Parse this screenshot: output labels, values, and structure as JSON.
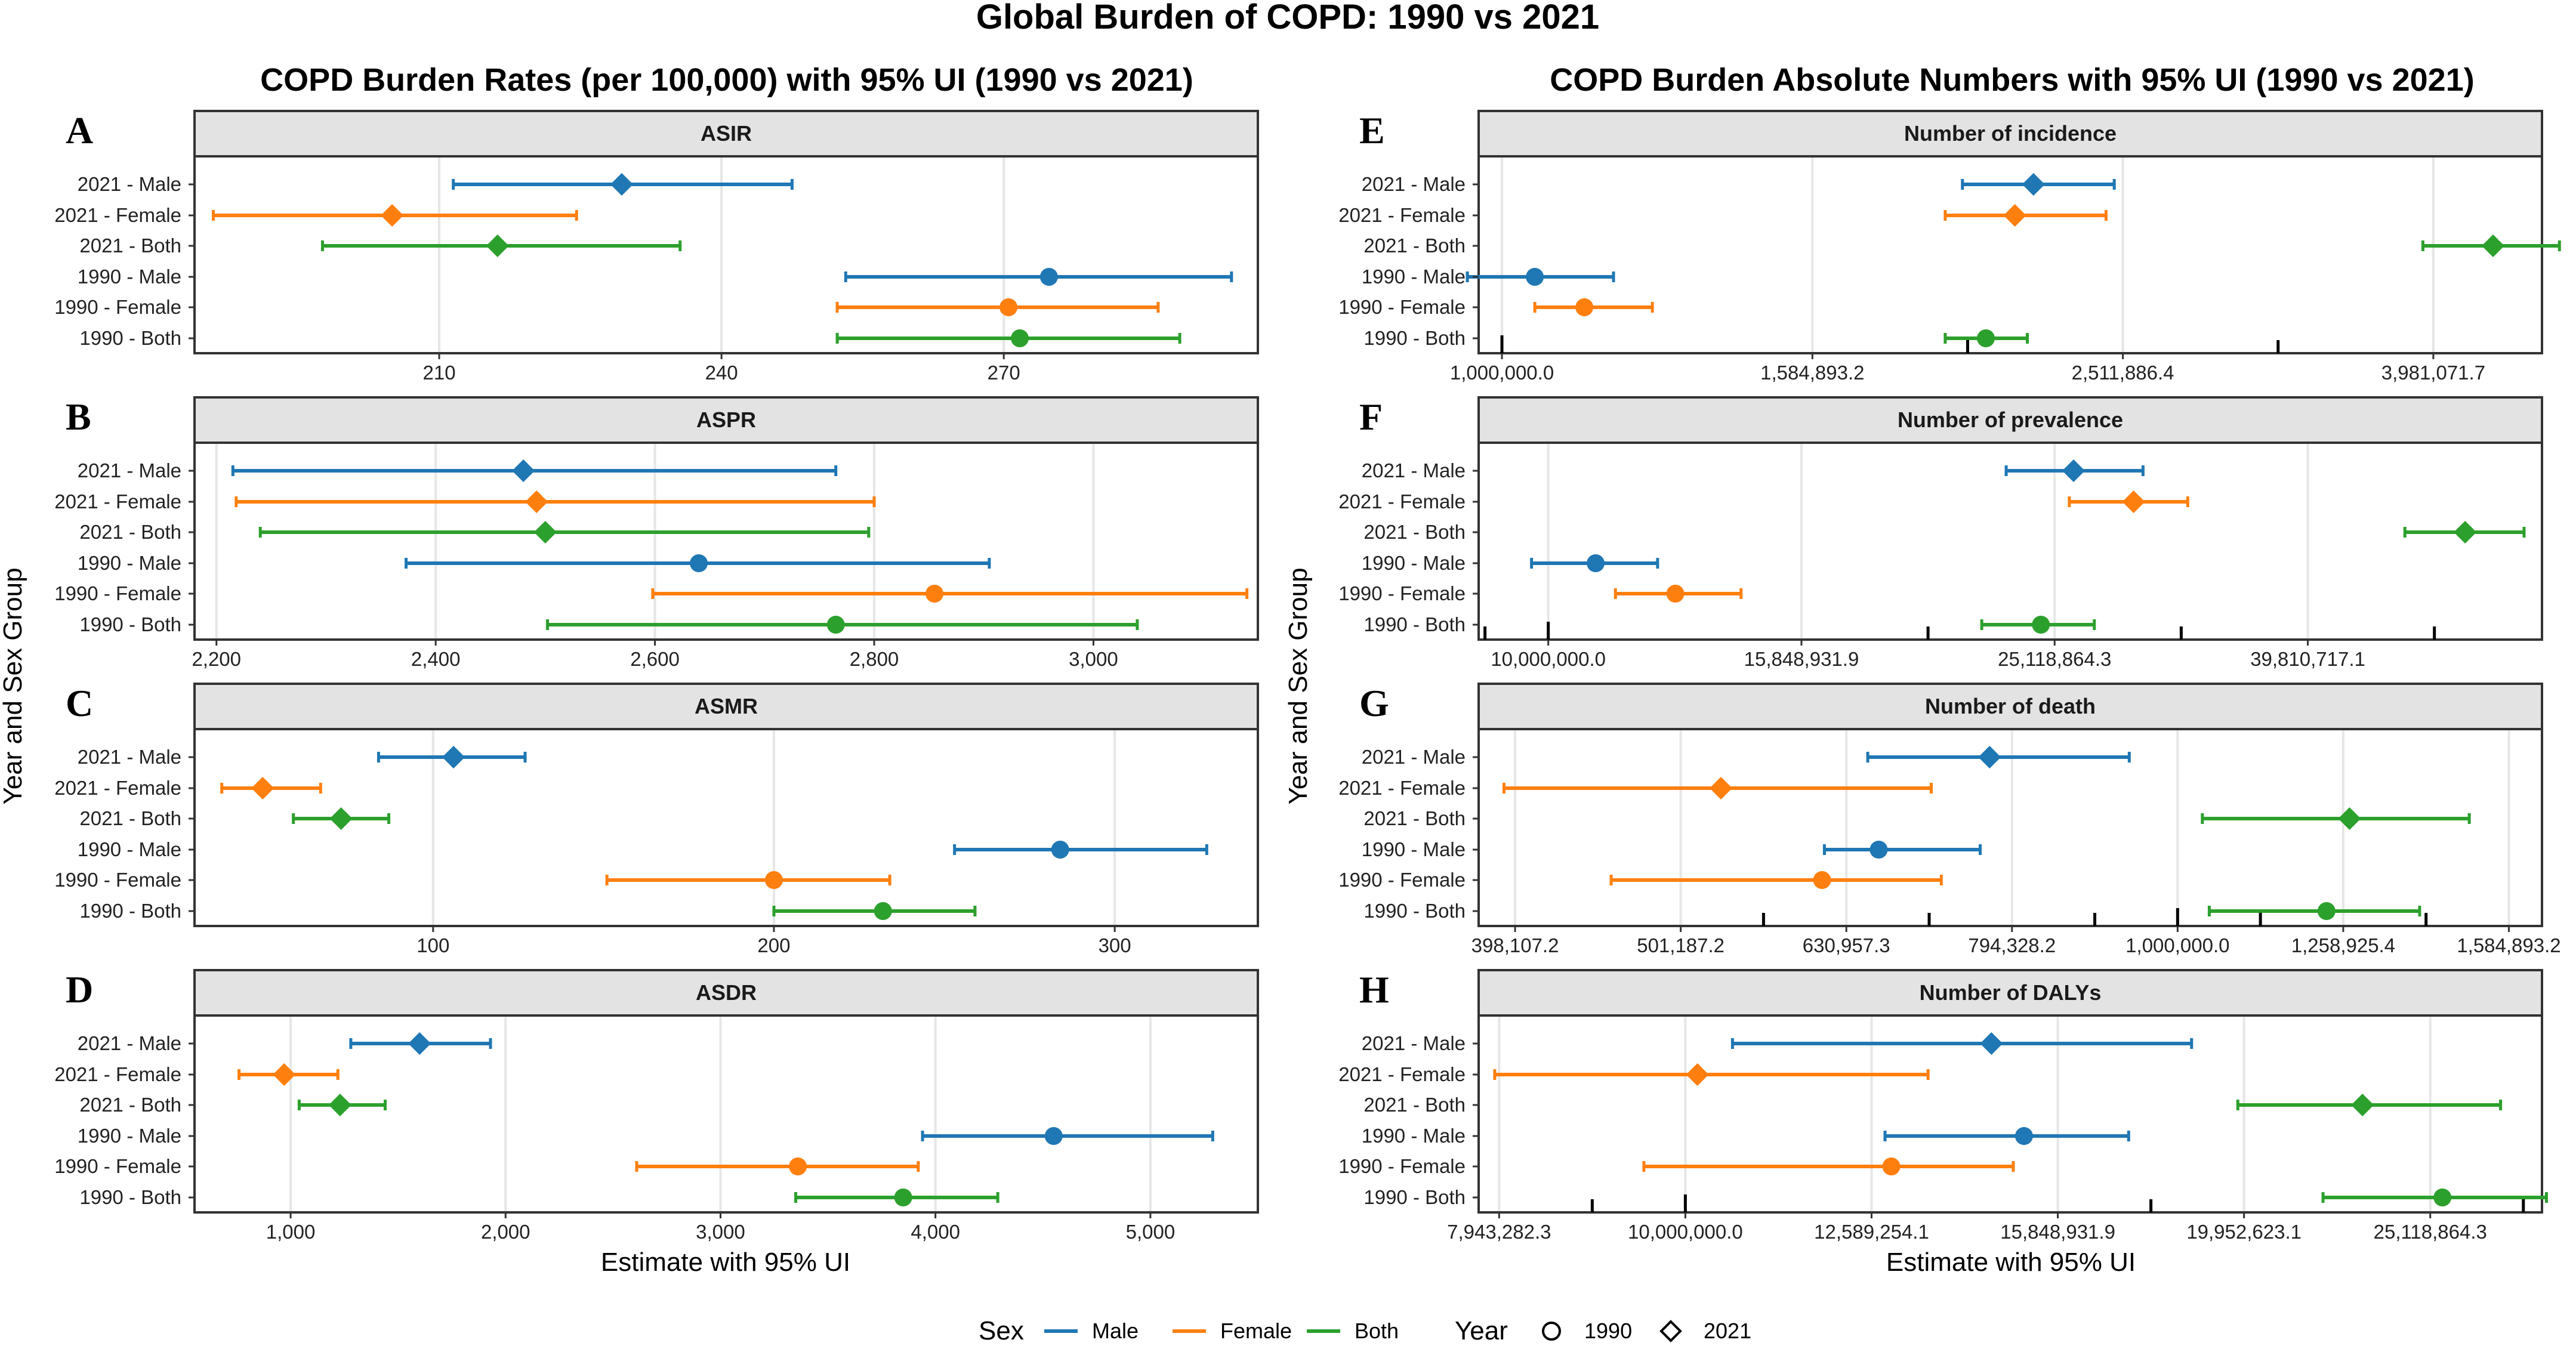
{
  "title": "Global Burden of COPD: 1990 vs 2021",
  "columns": [
    {
      "letter_set": "left",
      "title": "COPD Burden Rates (per 100,000) with 95% UI (1990 vs 2021)"
    },
    {
      "letter_set": "right",
      "title": "COPD Burden Absolute Numbers with 95% UI (1990 vs 2021)"
    }
  ],
  "y_axis_title": "Year and Sex Group",
  "x_axis_title": "Estimate with 95% UI",
  "row_labels": [
    "2021 - Male",
    "2021 - Female",
    "2021 - Both",
    "1990 - Male",
    "1990 - Female",
    "1990 - Both"
  ],
  "colors": {
    "Male": "#1f77b4",
    "Female": "#ff7f0e",
    "Both": "#2ca02c"
  },
  "legend": {
    "sex_title": "Sex",
    "sex_items": [
      {
        "label": "Male",
        "key": "Male"
      },
      {
        "label": "Female",
        "key": "Female"
      },
      {
        "label": "Both",
        "key": "Both"
      }
    ],
    "year_title": "Year",
    "year_items": [
      {
        "label": "1990",
        "shape": "circle"
      },
      {
        "label": "2021",
        "shape": "diamond"
      }
    ]
  },
  "chart_data": [
    {
      "letter": "A",
      "type": "forest",
      "strip": "ASIR",
      "scale": "linear",
      "xlim": [
        184,
        297
      ],
      "ticks": [
        210,
        240,
        270
      ],
      "tick_labels": [
        "210",
        "240",
        "270"
      ],
      "rows": [
        {
          "label": "2021 - Male",
          "sex": "Male",
          "year": "2021",
          "est": 229.4,
          "lo": 211.5,
          "hi": 247.5
        },
        {
          "label": "2021 - Female",
          "sex": "Female",
          "year": "2021",
          "est": 205.0,
          "lo": 186.0,
          "hi": 224.6
        },
        {
          "label": "2021 - Both",
          "sex": "Both",
          "year": "2021",
          "est": 216.2,
          "lo": 197.6,
          "hi": 235.6
        },
        {
          "label": "1990 - Male",
          "sex": "Male",
          "year": "1990",
          "est": 274.8,
          "lo": 253.2,
          "hi": 294.2
        },
        {
          "label": "1990 - Female",
          "sex": "Female",
          "year": "1990",
          "est": 270.5,
          "lo": 252.3,
          "hi": 286.4
        },
        {
          "label": "1990 - Both",
          "sex": "Both",
          "year": "1990",
          "est": 271.7,
          "lo": 252.3,
          "hi": 288.7
        }
      ]
    },
    {
      "letter": "B",
      "type": "forest",
      "strip": "ASPR",
      "scale": "linear",
      "xlim": [
        2180,
        3150
      ],
      "ticks": [
        2200,
        2400,
        2600,
        2800,
        3000
      ],
      "tick_labels": [
        "2,200",
        "2,400",
        "2,600",
        "2,800",
        "3,000"
      ],
      "rows": [
        {
          "label": "2021 - Male",
          "sex": "Male",
          "year": "2021",
          "est": 2480,
          "lo": 2215,
          "hi": 2765
        },
        {
          "label": "2021 - Female",
          "sex": "Female",
          "year": "2021",
          "est": 2492,
          "lo": 2218,
          "hi": 2800
        },
        {
          "label": "2021 - Both",
          "sex": "Both",
          "year": "2021",
          "est": 2500,
          "lo": 2240,
          "hi": 2795
        },
        {
          "label": "1990 - Male",
          "sex": "Male",
          "year": "1990",
          "est": 2640,
          "lo": 2373,
          "hi": 2905
        },
        {
          "label": "1990 - Female",
          "sex": "Female",
          "year": "1990",
          "est": 2855,
          "lo": 2598,
          "hi": 3140
        },
        {
          "label": "1990 - Both",
          "sex": "Both",
          "year": "1990",
          "est": 2765,
          "lo": 2502,
          "hi": 3040
        }
      ]
    },
    {
      "letter": "C",
      "type": "forest",
      "strip": "ASMR",
      "scale": "linear",
      "xlim": [
        30,
        342
      ],
      "ticks": [
        100,
        200,
        300
      ],
      "tick_labels": [
        "100",
        "200",
        "300"
      ],
      "rows": [
        {
          "label": "2021 - Male",
          "sex": "Male",
          "year": "2021",
          "est": 106,
          "lo": 84,
          "hi": 127
        },
        {
          "label": "2021 - Female",
          "sex": "Female",
          "year": "2021",
          "est": 50,
          "lo": 38,
          "hi": 67
        },
        {
          "label": "2021 - Both",
          "sex": "Both",
          "year": "2021",
          "est": 73,
          "lo": 59,
          "hi": 87
        },
        {
          "label": "1990 - Male",
          "sex": "Male",
          "year": "1990",
          "est": 284,
          "lo": 253,
          "hi": 327
        },
        {
          "label": "1990 - Female",
          "sex": "Female",
          "year": "1990",
          "est": 200,
          "lo": 151,
          "hi": 234
        },
        {
          "label": "1990 - Both",
          "sex": "Both",
          "year": "1990",
          "est": 232,
          "lo": 200,
          "hi": 259
        }
      ]
    },
    {
      "letter": "D",
      "type": "forest",
      "strip": "ASDR",
      "scale": "linear",
      "xlim": [
        553,
        5500
      ],
      "ticks": [
        1000,
        2000,
        3000,
        4000,
        5000
      ],
      "tick_labels": [
        "1,000",
        "2,000",
        "3,000",
        "4,000",
        "5,000"
      ],
      "rows": [
        {
          "label": "2021 - Male",
          "sex": "Male",
          "year": "2021",
          "est": 1600,
          "lo": 1280,
          "hi": 1930
        },
        {
          "label": "2021 - Female",
          "sex": "Female",
          "year": "2021",
          "est": 970,
          "lo": 760,
          "hi": 1220
        },
        {
          "label": "2021 - Both",
          "sex": "Both",
          "year": "2021",
          "est": 1230,
          "lo": 1040,
          "hi": 1440
        },
        {
          "label": "1990 - Male",
          "sex": "Male",
          "year": "1990",
          "est": 4550,
          "lo": 3940,
          "hi": 5290
        },
        {
          "label": "1990 - Female",
          "sex": "Female",
          "year": "1990",
          "est": 3360,
          "lo": 2610,
          "hi": 3920
        },
        {
          "label": "1990 - Both",
          "sex": "Both",
          "year": "1990",
          "est": 3850,
          "lo": 3350,
          "hi": 4290
        }
      ]
    },
    {
      "letter": "E",
      "type": "forest",
      "strip": "Number of incidence",
      "scale": "log10",
      "xlim": [
        5.985,
        6.67
      ],
      "ticks": [
        6.0,
        6.2,
        6.4,
        6.6
      ],
      "tick_labels": [
        "1,000,000.0",
        "1,584,893.2",
        "2,511,886.4",
        "3,981,071.7"
      ],
      "minor_ticks": [
        5.95,
        6.3,
        6.5,
        6.7
      ],
      "major_mark": 6.0,
      "rows": [
        {
          "label": "2021 - Male",
          "sex": "Male",
          "year": "2021",
          "est": 2200000,
          "lo": 1980000,
          "hi": 2480000
        },
        {
          "label": "2021 - Female",
          "sex": "Female",
          "year": "2021",
          "est": 2140000,
          "lo": 1930000,
          "hi": 2450000
        },
        {
          "label": "2021 - Both",
          "sex": "Both",
          "year": "2021",
          "est": 4350000,
          "lo": 3920000,
          "hi": 4800000
        },
        {
          "label": "1990 - Male",
          "sex": "Male",
          "year": "1990",
          "est": 1050000,
          "lo": 950000,
          "hi": 1180000
        },
        {
          "label": "1990 - Female",
          "sex": "Female",
          "year": "1990",
          "est": 1130000,
          "lo": 1050000,
          "hi": 1250000
        },
        {
          "label": "1990 - Both",
          "sex": "Both",
          "year": "1990",
          "est": 2050000,
          "lo": 1930000,
          "hi": 2180000
        }
      ]
    },
    {
      "letter": "F",
      "type": "forest",
      "strip": "Number of prevalence",
      "scale": "log10",
      "xlim": [
        6.945,
        7.785
      ],
      "ticks": [
        7.0,
        7.2,
        7.4,
        7.6
      ],
      "tick_labels": [
        "10,000,000.0",
        "15,848,931.9",
        "25,118,864.3",
        "39,810,717.1"
      ],
      "minor_ticks": [
        6.95,
        7.3,
        7.5,
        7.7,
        7.8
      ],
      "major_mark": 7.0,
      "rows": [
        {
          "label": "2021 - Male",
          "sex": "Male",
          "year": "2021",
          "est": 26000000,
          "lo": 23000000,
          "hi": 29500000
        },
        {
          "label": "2021 - Female",
          "sex": "Female",
          "year": "2021",
          "est": 29000000,
          "lo": 25800000,
          "hi": 32000000
        },
        {
          "label": "2021 - Both",
          "sex": "Both",
          "year": "2021",
          "est": 53000000,
          "lo": 47500000,
          "hi": 59000000
        },
        {
          "label": "1990 - Male",
          "sex": "Male",
          "year": "1990",
          "est": 10900000,
          "lo": 9700000,
          "hi": 12200000
        },
        {
          "label": "1990 - Female",
          "sex": "Female",
          "year": "1990",
          "est": 12600000,
          "lo": 11300000,
          "hi": 14200000
        },
        {
          "label": "1990 - Both",
          "sex": "Both",
          "year": "1990",
          "est": 24500000,
          "lo": 22000000,
          "hi": 27000000
        }
      ]
    },
    {
      "letter": "G",
      "type": "forest",
      "strip": "Number of death",
      "scale": "log10",
      "xlim": [
        5.578,
        6.22
      ],
      "ticks": [
        5.6,
        5.7,
        5.8,
        5.9,
        6.0,
        6.1,
        6.2
      ],
      "tick_labels": [
        "398,107.2",
        "501,187.2",
        "630,957.3",
        "794,328.2",
        "1,000,000.0",
        "1,258,925.4",
        "1,584,893.2"
      ],
      "minor_ticks": [
        5.75,
        5.85,
        5.95,
        6.05,
        6.15
      ],
      "major_mark": 6.0,
      "rows": [
        {
          "label": "2021 - Male",
          "sex": "Male",
          "year": "2021",
          "est": 770000,
          "lo": 650000,
          "hi": 935000
        },
        {
          "label": "2021 - Female",
          "sex": "Female",
          "year": "2021",
          "est": 530000,
          "lo": 392000,
          "hi": 710000
        },
        {
          "label": "2021 - Both",
          "sex": "Both",
          "year": "2021",
          "est": 1270000,
          "lo": 1035000,
          "hi": 1500000
        },
        {
          "label": "1990 - Male",
          "sex": "Male",
          "year": "1990",
          "est": 660000,
          "lo": 612000,
          "hi": 760000
        },
        {
          "label": "1990 - Female",
          "sex": "Female",
          "year": "1990",
          "est": 610000,
          "lo": 455000,
          "hi": 720000
        },
        {
          "label": "1990 - Both",
          "sex": "Both",
          "year": "1990",
          "est": 1230000,
          "lo": 1045000,
          "hi": 1400000
        }
      ]
    },
    {
      "letter": "H",
      "type": "forest",
      "strip": "Number of DALYs",
      "scale": "log10",
      "xlim": [
        6.889,
        7.46
      ],
      "ticks": [
        6.9,
        7.0,
        7.1,
        7.2,
        7.3,
        7.4
      ],
      "tick_labels": [
        "7,943,282.3",
        "10,000,000.0",
        "12,589,254.1",
        "15,848,931.9",
        "19,952,623.1",
        "25,118,864.3"
      ],
      "minor_ticks": [
        6.95,
        7.25,
        7.45
      ],
      "major_mark": 7.0,
      "rows": [
        {
          "label": "2021 - Male",
          "sex": "Male",
          "year": "2021",
          "est": 14600000,
          "lo": 10600000,
          "hi": 18700000
        },
        {
          "label": "2021 - Female",
          "sex": "Female",
          "year": "2021",
          "est": 10150000,
          "lo": 7900000,
          "hi": 13500000
        },
        {
          "label": "2021 - Both",
          "sex": "Both",
          "year": "2021",
          "est": 23100000,
          "lo": 19800000,
          "hi": 27400000
        },
        {
          "label": "1990 - Male",
          "sex": "Male",
          "year": "1990",
          "est": 15200000,
          "lo": 12800000,
          "hi": 17300000
        },
        {
          "label": "1990 - Female",
          "sex": "Female",
          "year": "1990",
          "est": 12900000,
          "lo": 9500000,
          "hi": 15000000
        },
        {
          "label": "1990 - Both",
          "sex": "Both",
          "year": "1990",
          "est": 25500000,
          "lo": 22000000,
          "hi": 29000000
        }
      ]
    }
  ]
}
